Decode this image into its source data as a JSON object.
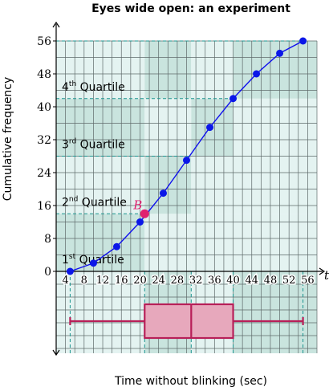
{
  "chart_data": {
    "type": "line",
    "title": "Eyes wide open: an experiment",
    "xlabel": "Time without blinking (sec)",
    "ylabel": "Cumulative frequency",
    "x_axis_symbol": "t",
    "xlim": [
      4,
      56
    ],
    "ylim": [
      0,
      56
    ],
    "x_ticks": [
      "4",
      "8",
      "12",
      "16",
      "20",
      "24",
      "28",
      "32",
      "36",
      "40",
      "44",
      "48",
      "52",
      "56"
    ],
    "y_ticks": [
      "0",
      "8",
      "16",
      "24",
      "32",
      "40",
      "48",
      "56"
    ],
    "grid": true,
    "series": [
      {
        "x": [
          5,
          10,
          15,
          20,
          25,
          30,
          35,
          40,
          45,
          50,
          55
        ],
        "y": [
          0,
          2,
          6,
          12,
          19,
          27,
          35,
          42,
          48,
          53,
          56
        ]
      }
    ],
    "highlight_point": {
      "label": "B",
      "x": 21,
      "y": 14
    },
    "quartile_bands": [
      {
        "ordinal": "1",
        "suffix": "st",
        "text": "Quartile",
        "y_from": 0,
        "y_to": 14
      },
      {
        "ordinal": "2",
        "suffix": "nd",
        "text": "Quartile",
        "y_from": 14,
        "y_to": 28
      },
      {
        "ordinal": "3",
        "suffix": "rd",
        "text": "Quartile",
        "y_from": 28,
        "y_to": 42
      },
      {
        "ordinal": "4",
        "suffix": "th",
        "text": "Quartile",
        "y_from": 42,
        "y_to": 56
      }
    ],
    "quartile_x": [
      21,
      31,
      40
    ],
    "boxplot": {
      "min": 5,
      "q1": 21,
      "median": 31,
      "q3": 40,
      "max": 55
    },
    "colors": {
      "line": "#1010ee",
      "point": "#0b17e8",
      "highlight": "#e0206f",
      "band_dark": "#c9e4de",
      "band_light": "#e4f3f1",
      "grid": "#5e6a6a",
      "dashed": "#1d9590",
      "box_fill": "#e7a8bc",
      "box_stroke": "#b81f58"
    }
  }
}
